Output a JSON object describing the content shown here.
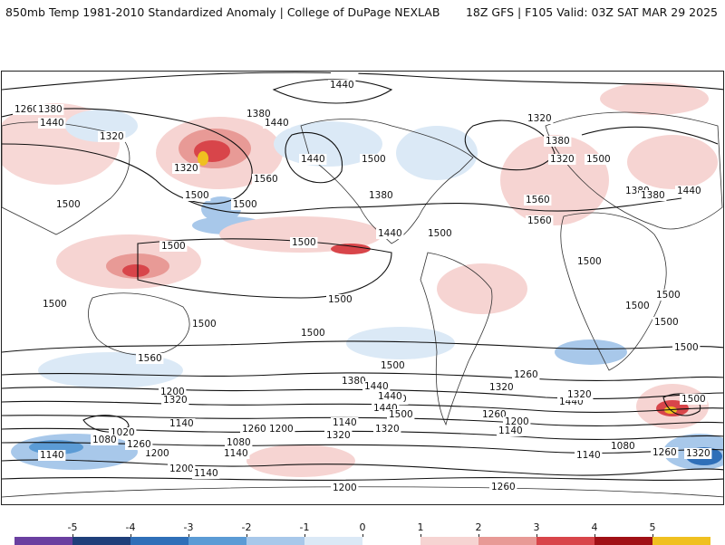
{
  "header": {
    "title_left": "850mb Temp 1981-2010 Standardized Anomaly | College of DuPage NEXLAB",
    "title_right": "18Z GFS | F105 Valid: 03Z SAT MAR 29 2025"
  },
  "colorbar": {
    "labels": [
      "-5",
      "-4",
      "-3",
      "-2",
      "-1",
      "0",
      "1",
      "2",
      "3",
      "4",
      "5"
    ],
    "colors": [
      "#6a3fa0",
      "#1f3f7a",
      "#2f6fb8",
      "#5b9bd5",
      "#a8c8ea",
      "#dbe9f6",
      "#ffffff",
      "#f6d4d2",
      "#e89a96",
      "#d8454a",
      "#a01016",
      "#f0c020"
    ]
  },
  "contour_labels": [
    {
      "text": "1320"
    },
    {
      "text": "1440"
    },
    {
      "text": "1260"
    },
    {
      "text": "1380"
    },
    {
      "text": "1440"
    },
    {
      "text": "1320"
    },
    {
      "text": "1380"
    },
    {
      "text": "1440"
    },
    {
      "text": "1320"
    },
    {
      "text": "1560"
    },
    {
      "text": "1500"
    },
    {
      "text": "1500"
    },
    {
      "text": "1440"
    },
    {
      "text": "1500"
    },
    {
      "text": "1380"
    },
    {
      "text": "1440"
    },
    {
      "text": "1560"
    },
    {
      "text": "1560"
    },
    {
      "text": "1500"
    },
    {
      "text": "1320"
    },
    {
      "text": "1380"
    },
    {
      "text": "1320"
    },
    {
      "text": "1500"
    },
    {
      "text": "1380"
    },
    {
      "text": "1440"
    },
    {
      "text": "1380"
    },
    {
      "text": "1500"
    },
    {
      "text": "1500"
    },
    {
      "text": "1500"
    },
    {
      "text": "1500"
    },
    {
      "text": "1500"
    },
    {
      "text": "1500"
    },
    {
      "text": "1500"
    },
    {
      "text": "1500"
    },
    {
      "text": "1500"
    },
    {
      "text": "1500"
    },
    {
      "text": "1560"
    },
    {
      "text": "1500"
    },
    {
      "text": "1380"
    },
    {
      "text": "1440"
    },
    {
      "text": "1380"
    },
    {
      "text": "1440"
    },
    {
      "text": "1320"
    },
    {
      "text": "1260"
    },
    {
      "text": "1200"
    },
    {
      "text": "1320"
    },
    {
      "text": "1140"
    },
    {
      "text": "1020"
    },
    {
      "text": "1080"
    },
    {
      "text": "1140"
    },
    {
      "text": "1200"
    },
    {
      "text": "1260"
    },
    {
      "text": "1080"
    },
    {
      "text": "1140"
    },
    {
      "text": "1260"
    },
    {
      "text": "1200"
    },
    {
      "text": "1140"
    },
    {
      "text": "1320"
    },
    {
      "text": "1500"
    },
    {
      "text": "1440"
    },
    {
      "text": "1260"
    },
    {
      "text": "1200"
    },
    {
      "text": "1140"
    },
    {
      "text": "1440"
    },
    {
      "text": "1320"
    },
    {
      "text": "1080"
    },
    {
      "text": "1140"
    },
    {
      "text": "1260"
    },
    {
      "text": "1320"
    },
    {
      "text": "1200"
    },
    {
      "text": "1140"
    },
    {
      "text": "1200"
    },
    {
      "text": "1260"
    },
    {
      "text": "1320"
    },
    {
      "text": "1500"
    },
    {
      "text": "1500"
    },
    {
      "text": "1500"
    }
  ]
}
